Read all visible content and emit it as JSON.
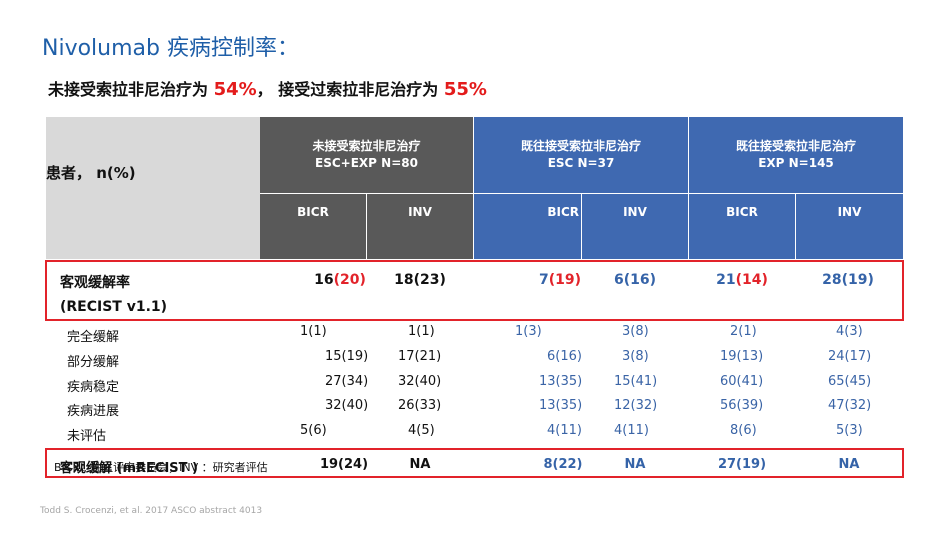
{
  "title": "Nivolumab 疾病控制率：",
  "subtitle": {
    "part1": "未接受索拉非尼治疗为 ",
    "pct1": "54%",
    "part2": "， 接受过索拉非尼治疗为 ",
    "pct2": "55%"
  },
  "table": {
    "patients_label": "患者， n(%)",
    "groups": [
      {
        "line1": "未接受索拉非尼治疗",
        "line2": "ESC+EXP  N=80"
      },
      {
        "line1": "既往接受索拉非尼治疗",
        "line2": "ESC  N=37"
      },
      {
        "line1": "既往接受索拉非尼治疗",
        "line2": "EXP  N=145"
      }
    ],
    "subheaders": [
      "BICR",
      "INV",
      "BICR",
      "INV",
      "BICR",
      "INV"
    ],
    "orr": {
      "label_line1": "客观缓解率",
      "label_line2": "(RECIST v1.1)",
      "values": [
        {
          "main": "16",
          "paren": "(20)"
        },
        {
          "main": "18",
          "paren": "(23)"
        },
        {
          "main": "7",
          "paren": "(19)"
        },
        {
          "main": "6",
          "paren": "(16)"
        },
        {
          "main": "21",
          "paren": "(14)"
        },
        {
          "main": "28",
          "paren": "(19)"
        }
      ]
    },
    "rows": [
      {
        "label": "完全缓解",
        "cells": [
          "1(1)",
          "1(1)",
          "1(3)",
          "3(8)",
          "2(1)",
          "4(3)"
        ]
      },
      {
        "label": "部分缓解",
        "cells": [
          "15(19)",
          "17(21)",
          "6(16)",
          "3(8)",
          "19(13)",
          "24(17)"
        ]
      },
      {
        "label": "疾病稳定",
        "cells": [
          "27(34)",
          "32(40)",
          "13(35)",
          "15(41)",
          "60(41)",
          "65(45)"
        ]
      },
      {
        "label": "疾病进展",
        "cells": [
          "32(40)",
          "26(33)",
          "13(35)",
          "12(32)",
          "56(39)",
          "47(32)"
        ]
      },
      {
        "label": "未评估",
        "cells": [
          "5(6)",
          "4(5)",
          "4(11)",
          "4(11)",
          "8(6)",
          "5(3)"
        ]
      }
    ],
    "mrecist": {
      "label": "客观缓解 (mRECIST )",
      "values": [
        "19(24)",
        "NA",
        "8(22)",
        "NA",
        "27(19)",
        "NA"
      ]
    }
  },
  "footnote": "BICR：独立评审委员会；INV ：研究者评估",
  "citation": "Todd S. Crocenzi, et al. 2017 ASCO abstract 4013",
  "colors": {
    "title_blue": "#1f5fa8",
    "highlight_red": "#e31b1b",
    "header_dark": "#595959",
    "header_blue": "#3f69b1",
    "header_gray": "#d9d9d9",
    "value_blue": "#3563a8"
  }
}
